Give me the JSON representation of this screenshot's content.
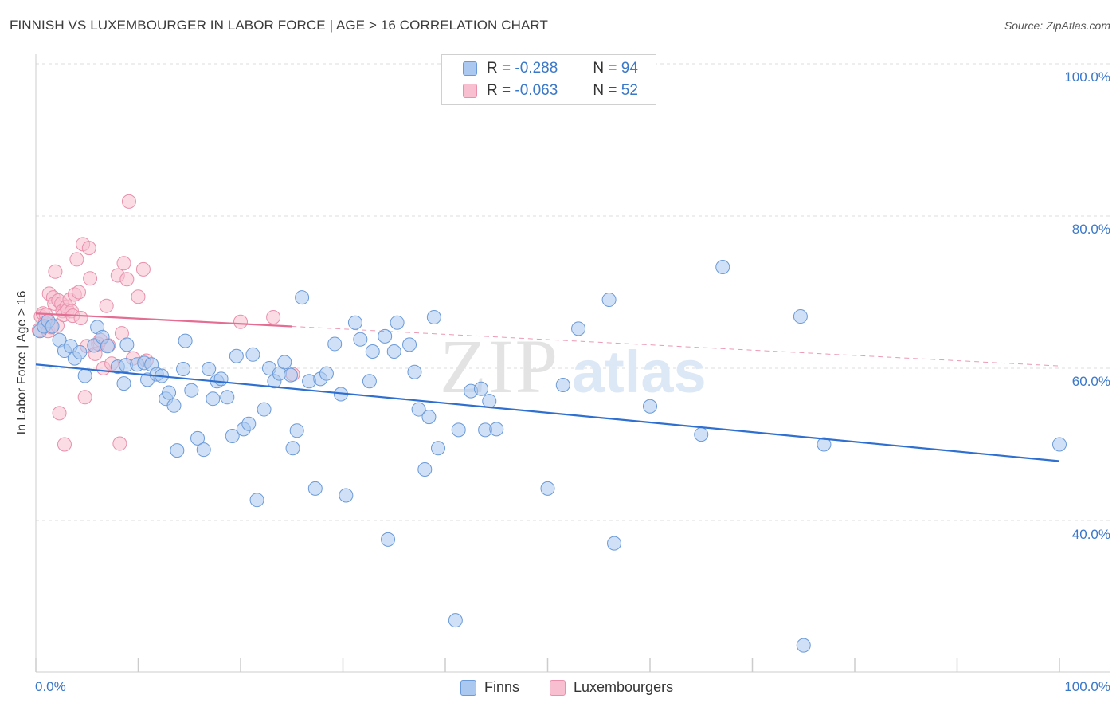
{
  "title": "FINNISH VS LUXEMBOURGER IN LABOR FORCE | AGE > 16 CORRELATION CHART",
  "source": "Source: ZipAtlas.com",
  "watermark": {
    "zip": "ZIP",
    "atlas": "atlas"
  },
  "colors": {
    "finns_fill": "#aac8f0",
    "finns_stroke": "#6b9ad8",
    "finns_line": "#2f6fcf",
    "lux_fill": "#f7bfd0",
    "lux_stroke": "#e890ac",
    "lux_line": "#e46d93",
    "axis_text": "#3a78c9",
    "grid": "#dddddd"
  },
  "legend": {
    "finns": {
      "r_label": "R =",
      "r_value": "-0.288",
      "n_label": "N =",
      "n_value": "94"
    },
    "lux": {
      "r_label": "R =",
      "r_value": "-0.063",
      "n_label": "N =",
      "n_value": "52"
    }
  },
  "bottom_legend": {
    "finns": "Finns",
    "lux": "Luxembourgers"
  },
  "chart_data": {
    "type": "scatter",
    "title": "FINNISH VS LUXEMBOURGER IN LABOR FORCE | AGE > 16 CORRELATION CHART",
    "xlabel": "",
    "ylabel": "In Labor Force | Age > 16",
    "xlim": [
      0,
      100
    ],
    "ylim": [
      20,
      104
    ],
    "x_tick_labels": [
      "0.0%",
      "100.0%"
    ],
    "y_ticks": [
      40,
      60,
      80,
      100
    ],
    "y_tick_labels": [
      "40.0%",
      "60.0%",
      "80.0%",
      "100.0%"
    ],
    "grid": true,
    "series": [
      {
        "name": "Finns",
        "R": -0.288,
        "N": 94,
        "trend": {
          "x": [
            0,
            100
          ],
          "y": [
            60.5,
            47.8
          ],
          "dashed_after": null
        },
        "points": [
          [
            0.4,
            64.9
          ],
          [
            0.8,
            65.5
          ],
          [
            1.2,
            66.2
          ],
          [
            1.6,
            65.5
          ],
          [
            2.3,
            63.7
          ],
          [
            2.8,
            62.3
          ],
          [
            3.4,
            62.9
          ],
          [
            3.8,
            61.3
          ],
          [
            4.3,
            62.1
          ],
          [
            4.8,
            59.0
          ],
          [
            5.7,
            63.0
          ],
          [
            6.0,
            65.4
          ],
          [
            6.5,
            64.1
          ],
          [
            7.0,
            62.9
          ],
          [
            8.0,
            60.2
          ],
          [
            8.8,
            60.4
          ],
          [
            8.6,
            58.0
          ],
          [
            8.9,
            63.1
          ],
          [
            9.9,
            60.5
          ],
          [
            10.6,
            60.7
          ],
          [
            10.9,
            58.5
          ],
          [
            11.3,
            60.5
          ],
          [
            11.8,
            59.2
          ],
          [
            12.3,
            59.0
          ],
          [
            12.7,
            56.0
          ],
          [
            13.0,
            56.8
          ],
          [
            13.5,
            55.1
          ],
          [
            13.8,
            49.2
          ],
          [
            14.4,
            59.9
          ],
          [
            14.6,
            63.6
          ],
          [
            15.2,
            57.1
          ],
          [
            15.8,
            50.8
          ],
          [
            16.4,
            49.3
          ],
          [
            16.9,
            59.9
          ],
          [
            17.3,
            56.0
          ],
          [
            17.7,
            58.3
          ],
          [
            18.1,
            58.6
          ],
          [
            18.7,
            56.2
          ],
          [
            19.2,
            51.1
          ],
          [
            19.6,
            61.6
          ],
          [
            20.3,
            52.0
          ],
          [
            20.8,
            52.7
          ],
          [
            21.2,
            61.8
          ],
          [
            21.6,
            42.7
          ],
          [
            22.3,
            54.6
          ],
          [
            22.8,
            60.0
          ],
          [
            23.3,
            58.3
          ],
          [
            23.8,
            59.3
          ],
          [
            24.3,
            60.8
          ],
          [
            24.9,
            59.1
          ],
          [
            25.1,
            49.5
          ],
          [
            25.5,
            51.8
          ],
          [
            26.0,
            69.3
          ],
          [
            26.7,
            58.3
          ],
          [
            27.3,
            44.2
          ],
          [
            27.8,
            58.6
          ],
          [
            28.4,
            59.3
          ],
          [
            29.2,
            63.2
          ],
          [
            29.8,
            56.6
          ],
          [
            30.3,
            43.3
          ],
          [
            31.2,
            66.0
          ],
          [
            31.7,
            63.8
          ],
          [
            32.6,
            58.3
          ],
          [
            32.9,
            62.2
          ],
          [
            34.1,
            64.2
          ],
          [
            34.4,
            37.5
          ],
          [
            35.0,
            62.2
          ],
          [
            35.3,
            66.0
          ],
          [
            36.5,
            63.1
          ],
          [
            37.0,
            59.5
          ],
          [
            37.4,
            54.6
          ],
          [
            38.0,
            46.7
          ],
          [
            38.4,
            53.6
          ],
          [
            38.9,
            66.7
          ],
          [
            39.3,
            49.5
          ],
          [
            41.0,
            26.9
          ],
          [
            41.3,
            51.9
          ],
          [
            42.5,
            57.0
          ],
          [
            43.5,
            57.3
          ],
          [
            43.9,
            51.9
          ],
          [
            44.3,
            55.7
          ],
          [
            45.0,
            52.0
          ],
          [
            50.0,
            44.2
          ],
          [
            51.5,
            57.8
          ],
          [
            53.0,
            65.2
          ],
          [
            56.0,
            69.0
          ],
          [
            56.5,
            37.0
          ],
          [
            60.0,
            55.0
          ],
          [
            65.0,
            51.3
          ],
          [
            67.1,
            73.3
          ],
          [
            74.7,
            66.8
          ],
          [
            75.0,
            23.6
          ],
          [
            77.0,
            50.0
          ],
          [
            100.0,
            50.0
          ]
        ]
      },
      {
        "name": "Luxembourgers",
        "R": -0.063,
        "N": 52,
        "trend": {
          "x": [
            0,
            25,
            100
          ],
          "y": [
            67.2,
            65.5,
            60.3
          ],
          "solid_until_x": 25
        },
        "points": [
          [
            0.3,
            65.0
          ],
          [
            0.5,
            66.8
          ],
          [
            0.7,
            67.2
          ],
          [
            0.9,
            66.0
          ],
          [
            1.0,
            67.0
          ],
          [
            1.2,
            64.9
          ],
          [
            1.3,
            69.8
          ],
          [
            1.5,
            65.4
          ],
          [
            1.7,
            69.3
          ],
          [
            1.8,
            68.5
          ],
          [
            1.9,
            72.7
          ],
          [
            2.1,
            65.6
          ],
          [
            2.2,
            68.9
          ],
          [
            2.3,
            54.1
          ],
          [
            2.5,
            68.5
          ],
          [
            2.6,
            67.5
          ],
          [
            2.7,
            67.0
          ],
          [
            2.8,
            50.0
          ],
          [
            3.0,
            68.1
          ],
          [
            3.1,
            67.6
          ],
          [
            3.3,
            69.0
          ],
          [
            3.5,
            67.5
          ],
          [
            3.6,
            66.9
          ],
          [
            3.8,
            69.7
          ],
          [
            4.0,
            74.3
          ],
          [
            4.2,
            70.0
          ],
          [
            4.4,
            66.6
          ],
          [
            4.6,
            76.3
          ],
          [
            4.8,
            56.2
          ],
          [
            5.0,
            62.9
          ],
          [
            5.2,
            75.8
          ],
          [
            5.3,
            71.8
          ],
          [
            5.8,
            61.9
          ],
          [
            6.1,
            63.2
          ],
          [
            6.3,
            63.7
          ],
          [
            6.6,
            60.0
          ],
          [
            6.9,
            68.2
          ],
          [
            7.1,
            63.0
          ],
          [
            7.4,
            60.6
          ],
          [
            8.0,
            72.2
          ],
          [
            8.2,
            50.1
          ],
          [
            8.4,
            64.6
          ],
          [
            8.6,
            73.8
          ],
          [
            8.9,
            71.7
          ],
          [
            9.1,
            81.9
          ],
          [
            9.5,
            61.3
          ],
          [
            10.0,
            69.4
          ],
          [
            10.5,
            73.0
          ],
          [
            10.8,
            61.0
          ],
          [
            20.0,
            66.1
          ],
          [
            23.2,
            66.7
          ],
          [
            25.1,
            59.2
          ]
        ]
      }
    ]
  }
}
